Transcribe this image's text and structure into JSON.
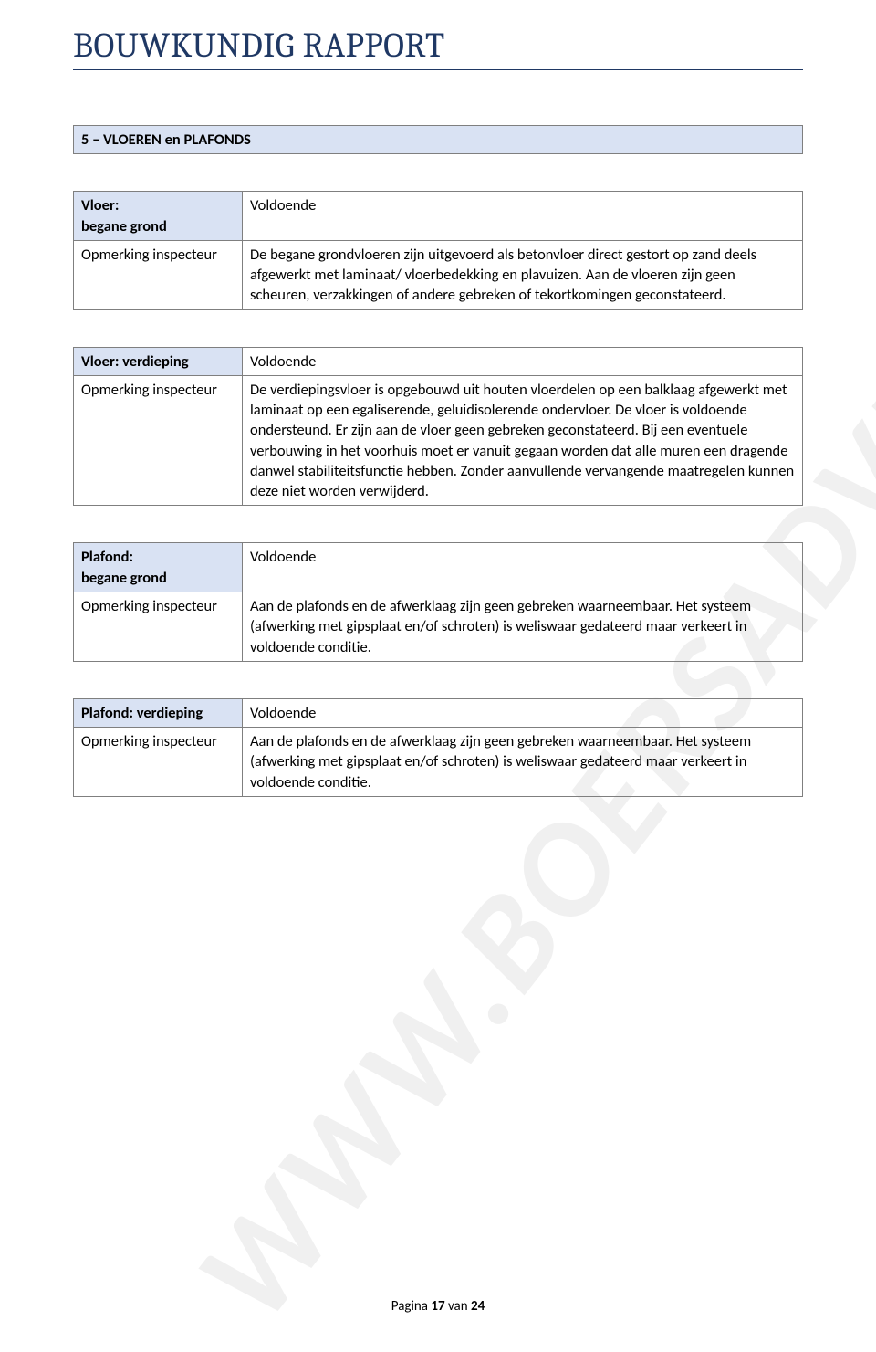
{
  "watermark_text": "WWW.BOERSADVIES.NL",
  "doc_title": "BOUWKUNDIG RAPPORT",
  "section_title": "5 – VLOEREN en PLAFONDS",
  "colors": {
    "title_color": "#1f3864",
    "label_bg": "#d9e2f3",
    "border": "#7f7f7f",
    "watermark": "rgba(130,130,130,0.12)"
  },
  "blocks": [
    {
      "label": "Vloer:\nbegane grond",
      "status": "Voldoende",
      "sublabel": "Opmerking inspecteur",
      "text": "De begane grondvloeren zijn uitgevoerd als betonvloer direct gestort op zand deels afgewerkt met laminaat/ vloerbedekking en plavuizen. Aan de vloeren zijn geen scheuren, verzakkingen of andere gebreken of tekortkomingen geconstateerd."
    },
    {
      "label": "Vloer: verdieping",
      "status": "Voldoende",
      "sublabel": "Opmerking inspecteur",
      "text": "De verdiepingsvloer is opgebouwd uit houten vloerdelen op een balklaag afgewerkt met laminaat op een egaliserende, geluidisolerende ondervloer. De vloer is voldoende ondersteund. Er zijn aan de vloer geen gebreken geconstateerd. Bij een eventuele verbouwing in het voorhuis moet er vanuit gegaan worden dat alle muren een dragende danwel stabiliteitsfunctie hebben. Zonder aanvullende vervangende maatregelen kunnen deze niet worden verwijderd."
    },
    {
      "label": "Plafond:\nbegane grond",
      "status": "Voldoende",
      "sublabel": "Opmerking inspecteur",
      "text": "Aan de plafonds en de afwerklaag zijn geen gebreken waarneembaar. Het systeem (afwerking met gipsplaat en/of schroten) is weliswaar gedateerd maar verkeert in voldoende conditie."
    },
    {
      "label": "Plafond: verdieping",
      "status": "Voldoende",
      "sublabel": "Opmerking inspecteur",
      "text": "Aan de plafonds en de afwerklaag zijn geen gebreken waarneembaar. Het systeem (afwerking met gipsplaat en/of schroten) is weliswaar gedateerd maar verkeert in voldoende conditie."
    }
  ],
  "footer": {
    "prefix": "Pagina ",
    "page_num": "17",
    "middle": " van ",
    "page_total": "24"
  }
}
